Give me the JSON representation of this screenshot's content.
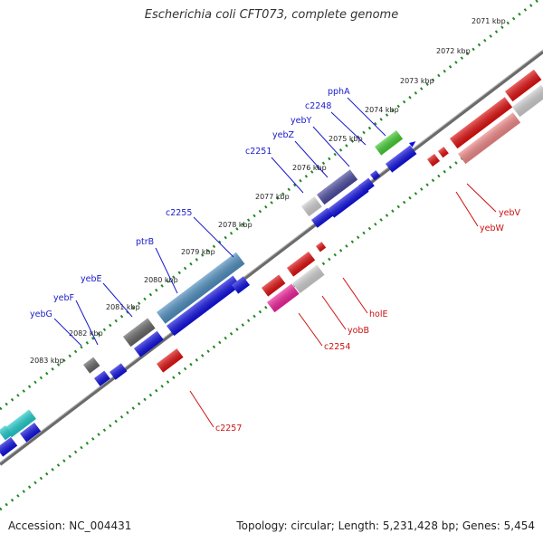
{
  "title": "Escherichia coli CFT073, complete genome",
  "footer": {
    "accession": "Accession: NC_004431",
    "summary": "Topology: circular; Length: 5,231,428 bp; Genes: 5,454"
  },
  "colors": {
    "forward_label": "#1a1acc",
    "reverse_label": "#cc1111",
    "ruler_dots": "#228822",
    "backbone": "#777777"
  },
  "kbp_ticks": [
    "2071 kbp",
    "2072 kbp",
    "2073 kbp",
    "2074 kbp",
    "2075 kbp",
    "2076 kbp",
    "2077 kbp",
    "2078 kbp",
    "2079 kbp",
    "2080 kbp",
    "2081 kbp",
    "2082 kbp",
    "2083 kbp"
  ],
  "forward_labels": [
    "pphA",
    "c2248",
    "yebY",
    "yebZ",
    "c2251",
    "c2255",
    "ptrB",
    "yebE",
    "yebF",
    "yebG"
  ],
  "reverse_labels": [
    "yebV",
    "yebW",
    "holE",
    "yobB",
    "c2254",
    "c2257"
  ],
  "feature_colors": [
    "#1010e0",
    "#e01010",
    "#44cc33",
    "#4a4aa0",
    "#cfcfcf",
    "#4f8fc0",
    "#666666",
    "#ee2299",
    "#f08888",
    "#22cccc"
  ]
}
